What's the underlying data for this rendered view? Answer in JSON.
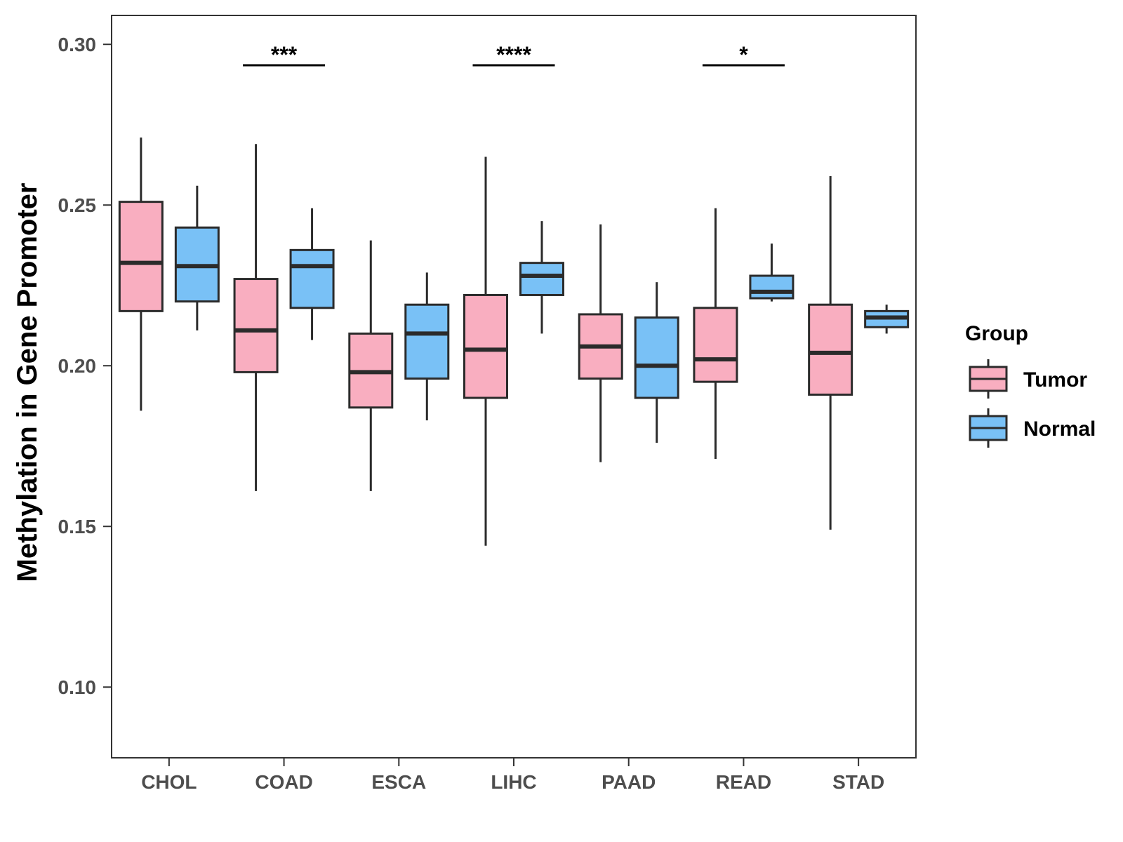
{
  "chart_data": {
    "type": "boxplot",
    "title": "",
    "xlabel": "",
    "ylabel": "Methylation in Gene Promoter",
    "ylim": [
      0.078,
      0.309
    ],
    "yticks": [
      0.1,
      0.15,
      0.2,
      0.25,
      0.3
    ],
    "ytick_labels": [
      "0.10",
      "0.15",
      "0.20",
      "0.25",
      "0.30"
    ],
    "categories": [
      "CHOL",
      "COAD",
      "ESCA",
      "LIHC",
      "PAAD",
      "READ",
      "STAD"
    ],
    "legend": {
      "title": "Group",
      "position": "right",
      "entries": [
        "Tumor",
        "Normal"
      ]
    },
    "colors": {
      "Tumor": "#f9aec0",
      "Normal": "#79c1f6",
      "outline": "#2b2b2b"
    },
    "series": [
      {
        "name": "Tumor",
        "boxes": [
          {
            "min": 0.186,
            "q1": 0.217,
            "median": 0.232,
            "q3": 0.251,
            "max": 0.271
          },
          {
            "min": 0.161,
            "q1": 0.198,
            "median": 0.211,
            "q3": 0.227,
            "max": 0.269
          },
          {
            "min": 0.161,
            "q1": 0.187,
            "median": 0.198,
            "q3": 0.21,
            "max": 0.239
          },
          {
            "min": 0.144,
            "q1": 0.19,
            "median": 0.205,
            "q3": 0.222,
            "max": 0.265
          },
          {
            "min": 0.17,
            "q1": 0.196,
            "median": 0.206,
            "q3": 0.216,
            "max": 0.244
          },
          {
            "min": 0.171,
            "q1": 0.195,
            "median": 0.202,
            "q3": 0.218,
            "max": 0.249
          },
          {
            "min": 0.149,
            "q1": 0.191,
            "median": 0.204,
            "q3": 0.219,
            "max": 0.259
          }
        ]
      },
      {
        "name": "Normal",
        "boxes": [
          {
            "min": 0.211,
            "q1": 0.22,
            "median": 0.231,
            "q3": 0.243,
            "max": 0.256
          },
          {
            "min": 0.208,
            "q1": 0.218,
            "median": 0.231,
            "q3": 0.236,
            "max": 0.249
          },
          {
            "min": 0.183,
            "q1": 0.196,
            "median": 0.21,
            "q3": 0.219,
            "max": 0.229
          },
          {
            "min": 0.21,
            "q1": 0.222,
            "median": 0.228,
            "q3": 0.232,
            "max": 0.245
          },
          {
            "min": 0.176,
            "q1": 0.19,
            "median": 0.2,
            "q3": 0.215,
            "max": 0.226
          },
          {
            "min": 0.22,
            "q1": 0.221,
            "median": 0.223,
            "q3": 0.228,
            "max": 0.238
          },
          {
            "min": 0.21,
            "q1": 0.212,
            "median": 0.215,
            "q3": 0.217,
            "max": 0.219
          }
        ]
      }
    ],
    "significance": [
      {
        "category": "COAD",
        "label": "***",
        "y": 0.2935
      },
      {
        "category": "LIHC",
        "label": "****",
        "y": 0.2935
      },
      {
        "category": "READ",
        "label": "*",
        "y": 0.2935
      }
    ]
  }
}
